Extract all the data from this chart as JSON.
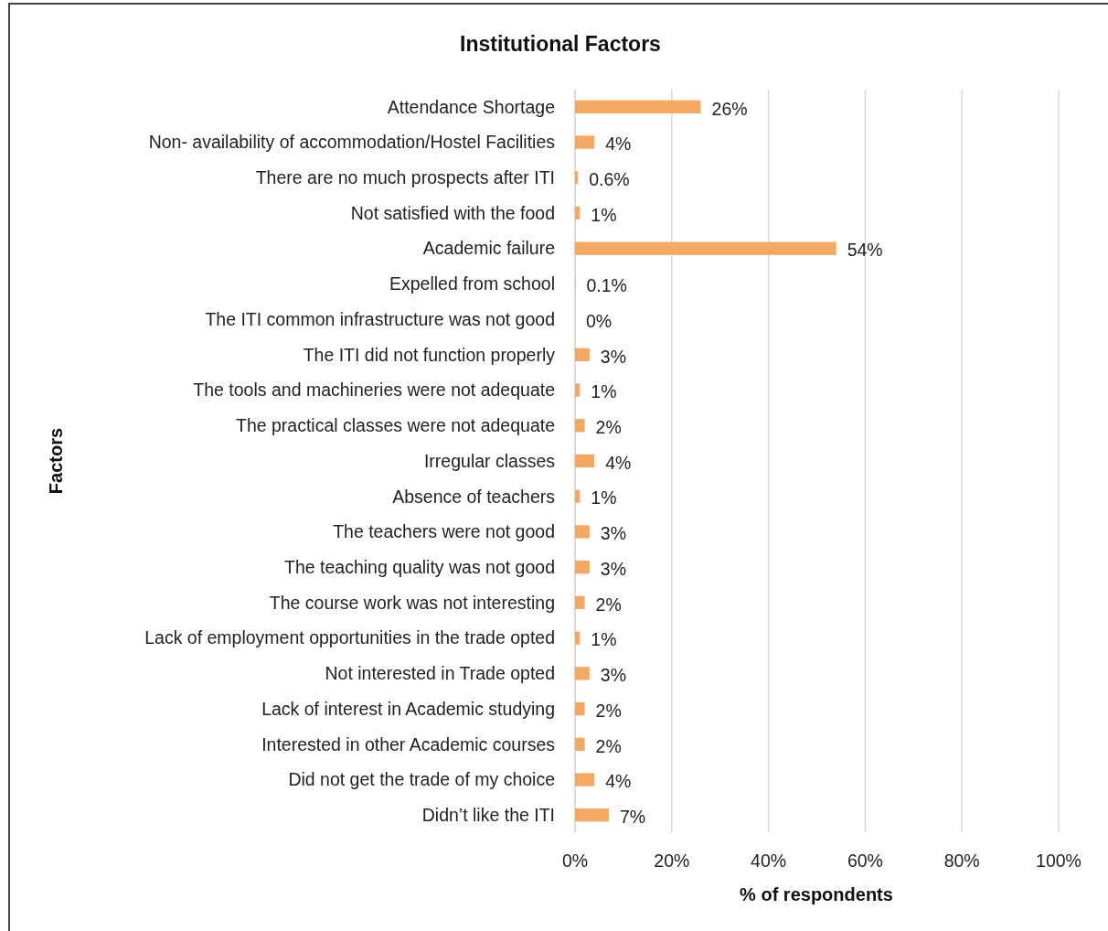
{
  "chart_data": {
    "type": "bar",
    "orientation": "horizontal",
    "title": "Institutional Factors",
    "xlabel": "% of respondents",
    "ylabel": "Factors",
    "categories": [
      "Attendance Shortage",
      "Non- availability of accommodation/Hostel Facilities",
      "There are no much prospects after ITI",
      "Not satisfied with the food",
      "Academic failure",
      "Expelled from school",
      "The ITI common infrastructure was not good",
      "The ITI did not function properly",
      "The tools and machineries were not adequate",
      "The practical classes were not adequate",
      "Irregular classes",
      "Absence of teachers",
      "The teachers were not good",
      "The teaching quality was not good",
      "The course work was not interesting",
      "Lack of employment opportunities in the trade opted",
      "Not interested in Trade opted",
      "Lack of interest in Academic studying",
      "Interested in other Academic courses",
      "Did not get the trade of my choice",
      "Didn’t like the ITI"
    ],
    "values": [
      26,
      4,
      0.6,
      1,
      54,
      0.1,
      0,
      3,
      1,
      2,
      4,
      1,
      3,
      3,
      2,
      1,
      3,
      2,
      2,
      4,
      7
    ],
    "value_labels": [
      "26%",
      "4%",
      "0.6%",
      "1%",
      "54%",
      "0.1%",
      "0%",
      "3%",
      "1%",
      "2%",
      "4%",
      "1%",
      "3%",
      "3%",
      "2%",
      "1%",
      "3%",
      "2%",
      "2%",
      "4%",
      "7%"
    ],
    "color": "#f4a862",
    "xlim": [
      0,
      100
    ],
    "xticks": [
      {
        "value": 0,
        "label": "0%"
      },
      {
        "value": 20,
        "label": "20%"
      },
      {
        "value": 40,
        "label": "40%"
      },
      {
        "value": 60,
        "label": "60%"
      },
      {
        "value": 80,
        "label": "80%"
      },
      {
        "value": 100,
        "label": "100%"
      }
    ],
    "grid": "x"
  }
}
